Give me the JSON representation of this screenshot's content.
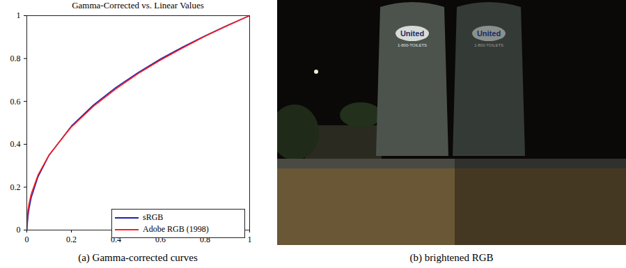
{
  "chart_data": {
    "type": "line",
    "title": "Gamma-Corrected vs. Linear Values",
    "caption": "(a) Gamma-corrected curves",
    "x": [
      0,
      0.005,
      0.01,
      0.02,
      0.05,
      0.1,
      0.2,
      0.3,
      0.4,
      0.5,
      0.6,
      0.7,
      0.8,
      0.9,
      1
    ],
    "series": [
      {
        "name": "sRGB",
        "color": "#2020b0",
        "values": [
          0,
          0.061,
          0.1,
          0.152,
          0.248,
          0.349,
          0.485,
          0.584,
          0.665,
          0.735,
          0.798,
          0.854,
          0.906,
          0.955,
          1
        ]
      },
      {
        "name": "Adobe RGB (1998)",
        "color": "#ff1a1a",
        "values": [
          0,
          0.09,
          0.123,
          0.169,
          0.256,
          0.351,
          0.481,
          0.578,
          0.659,
          0.73,
          0.793,
          0.85,
          0.904,
          0.953,
          1
        ]
      }
    ],
    "xlim": [
      0,
      1
    ],
    "ylim": [
      0,
      1
    ],
    "xticks": [
      0,
      0.2,
      0.4,
      0.6,
      0.8,
      1
    ],
    "yticks": [
      0,
      0.2,
      0.4,
      0.6,
      0.8,
      1
    ],
    "grid": false,
    "legend": "lower right"
  },
  "image": {
    "caption": "(b) brightened RGB",
    "texts": [
      "United",
      "1-800-TOILETS",
      "United",
      "1-800-TOILETS"
    ]
  }
}
